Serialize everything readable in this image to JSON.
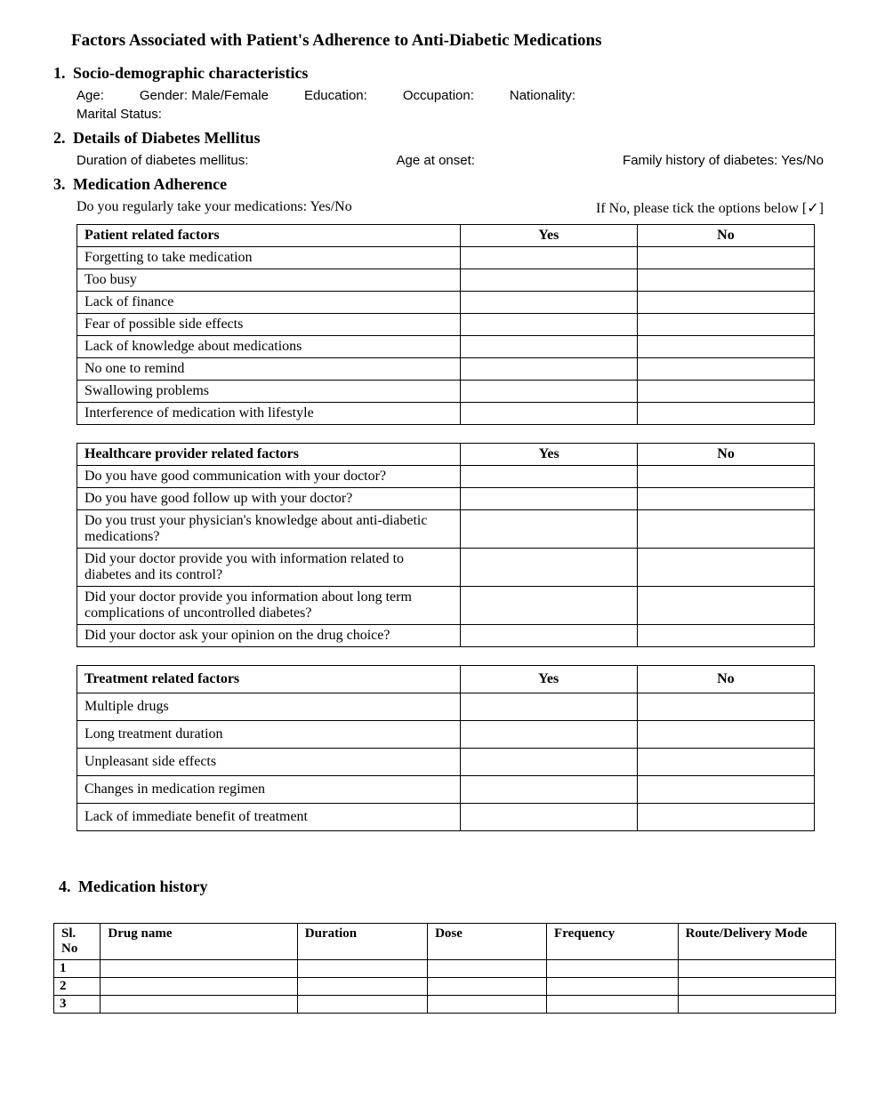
{
  "title": "Factors Associated with Patient's Adherence to Anti-Diabetic Medications",
  "s1": {
    "num": "1.",
    "heading": "Socio-demographic characteristics",
    "age": "Age:",
    "gender": "Gender: Male/Female",
    "education": "Education:",
    "occupation": "Occupation:",
    "nationality": "Nationality:",
    "marital": "Marital Status:"
  },
  "s2": {
    "num": "2.",
    "heading": "Details of Diabetes Mellitus",
    "duration": "Duration of diabetes mellitus:",
    "onset": "Age at onset:",
    "family": "Family history of diabetes:  Yes/No"
  },
  "s3": {
    "num": "3.",
    "heading": "Medication Adherence",
    "q": "Do you regularly take your medications: Yes/No",
    "tick": "If No, please tick the options below [✓]",
    "t1": {
      "h0": "Patient related factors",
      "h1": "Yes",
      "h2": "No",
      "rows": [
        "Forgetting to take medication",
        "Too busy",
        "Lack of finance",
        "Fear of possible side effects",
        "Lack of knowledge about medications",
        "No one to remind",
        "Swallowing problems",
        "Interference of medication with lifestyle"
      ]
    },
    "t2": {
      "h0": "Healthcare provider related factors",
      "h1": "Yes",
      "h2": "No",
      "rows": [
        "Do you have good communication with your doctor?",
        "Do you have good follow up with your doctor?",
        "Do you trust your physician's knowledge about anti-diabetic medications?",
        "Did your doctor provide you with information related to diabetes and its control?",
        "Did your doctor provide you information about long term complications of uncontrolled diabetes?",
        "Did your doctor ask your opinion on the drug choice?"
      ]
    },
    "t3": {
      "h0": "Treatment related factors",
      "h1": "Yes",
      "h2": "No",
      "rows": [
        "Multiple drugs",
        "Long treatment duration",
        "Unpleasant side effects",
        "Changes in medication regimen",
        "Lack of immediate benefit of treatment"
      ]
    }
  },
  "s4": {
    "num": "4.",
    "heading": "Medication history",
    "cols": [
      "Sl. No",
      "Drug name",
      "Duration",
      "Dose",
      "Frequency",
      "Route/Delivery Mode"
    ],
    "rows": [
      "1",
      "2",
      "3"
    ]
  }
}
